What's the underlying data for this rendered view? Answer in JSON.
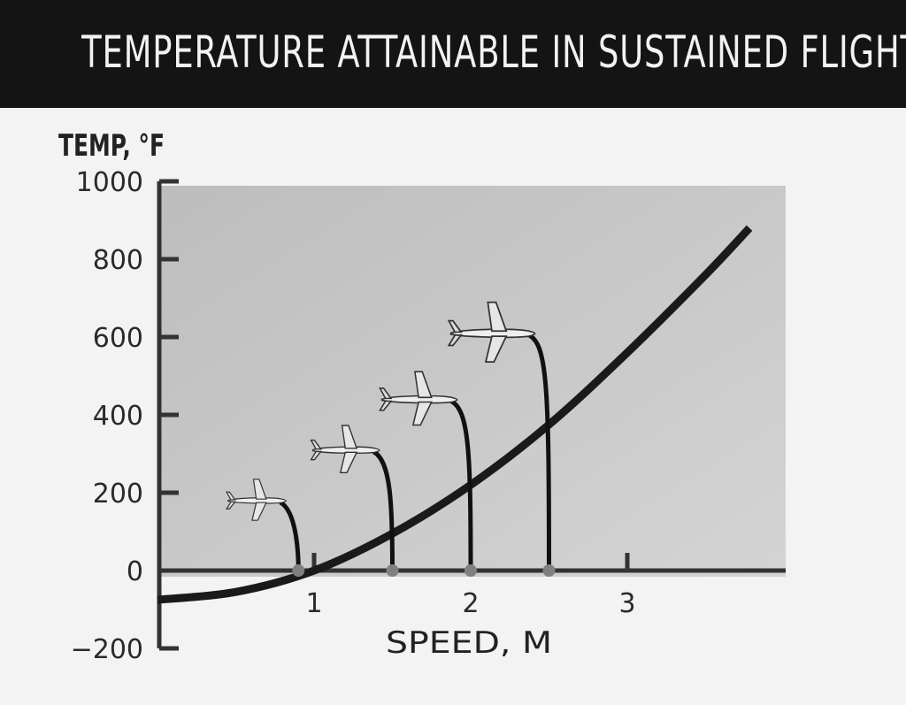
{
  "chart_data": {
    "type": "line",
    "title": "TEMPERATURE ATTAINABLE IN SUSTAINED FLIGHT",
    "xlabel": "SPEED, M",
    "ylabel": "TEMP, °F",
    "xlim": [
      0,
      4
    ],
    "ylim": [
      -200,
      1000
    ],
    "yticks": [
      {
        "v": 1000,
        "label": "1000"
      },
      {
        "v": 800,
        "label": "800"
      },
      {
        "v": 600,
        "label": "600"
      },
      {
        "v": 400,
        "label": "400"
      },
      {
        "v": 200,
        "label": "200"
      },
      {
        "v": 0,
        "label": "0"
      },
      {
        "v": -200,
        "label": "−200"
      }
    ],
    "xticks": [
      {
        "v": 1,
        "label": "1"
      },
      {
        "v": 2,
        "label": "2"
      },
      {
        "v": 3,
        "label": "3"
      }
    ],
    "grid": false,
    "series": [
      {
        "name": "Temperature",
        "x": [
          0,
          0.5,
          1,
          1.5,
          2,
          2.5,
          3,
          3.5,
          3.78
        ],
        "y": [
          -75,
          -55,
          0,
          95,
          220,
          375,
          560,
          760,
          880
        ]
      }
    ],
    "aircraft_markers": [
      {
        "speed": 0.9,
        "plane_temp": 180
      },
      {
        "speed": 1.5,
        "plane_temp": 310
      },
      {
        "speed": 2.0,
        "plane_temp": 440
      },
      {
        "speed": 2.5,
        "plane_temp": 610
      }
    ],
    "colors": {
      "banner": "#141414",
      "plot_bg": "#c9c9c9",
      "curve": "#1a1a1a",
      "dot": "#808080"
    }
  }
}
